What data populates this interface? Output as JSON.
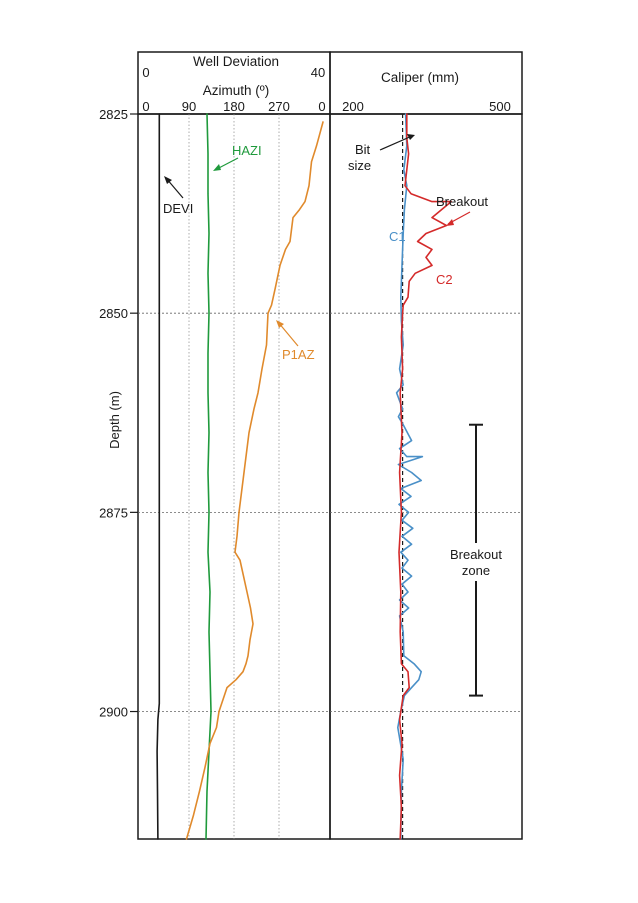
{
  "chart_data": [
    {
      "type": "line",
      "panel": "Well Deviation / Azimuth track",
      "header": {
        "deviation_title": "Well Deviation",
        "deviation_min": "0",
        "deviation_max": "40",
        "azimuth_title": "Azimuth (º)",
        "azimuth_ticks": [
          "0",
          "90",
          "180",
          "270",
          "0"
        ]
      },
      "y_axis": {
        "label": "Depth (m)",
        "ticks": [
          "2825",
          "2850",
          "2875",
          "2900"
        ],
        "ylim": [
          2825,
          2916
        ],
        "gridlines_at": [
          2850,
          2875,
          2900
        ],
        "inverted": true
      },
      "deviation_range": [
        0,
        40
      ],
      "azimuth_range": [
        0,
        360
      ],
      "azimuth_grid_at": [
        90,
        180,
        270
      ],
      "series": [
        {
          "name": "DEVI",
          "color": "#1a1a1a",
          "scale": "deviation",
          "points": [
            [
              3.4,
              2825
            ],
            [
              3.4,
              2850
            ],
            [
              3.4,
              2875
            ],
            [
              3.4,
              2899
            ],
            [
              3.1,
              2901
            ],
            [
              2.9,
              2905
            ],
            [
              3.0,
              2910
            ],
            [
              3.1,
              2916
            ]
          ]
        },
        {
          "name": "HAZI",
          "color": "#1f9a3c",
          "scale": "azimuth",
          "points": [
            [
              126,
              2825
            ],
            [
              128,
              2830
            ],
            [
              128,
              2835
            ],
            [
              130,
              2840
            ],
            [
              128,
              2845
            ],
            [
              130,
              2850
            ],
            [
              128,
              2855
            ],
            [
              128,
              2860
            ],
            [
              130,
              2865
            ],
            [
              128,
              2870
            ],
            [
              130,
              2875
            ],
            [
              128,
              2880
            ],
            [
              132,
              2885
            ],
            [
              130,
              2890
            ],
            [
              132,
              2895
            ],
            [
              134,
              2900
            ],
            [
              130,
              2905
            ],
            [
              126,
              2910
            ],
            [
              124,
              2916
            ]
          ]
        },
        {
          "name": "P1AZ",
          "color": "#e08a2c",
          "scale": "azimuth",
          "points": [
            [
              358,
              2826
            ],
            [
              345,
              2829
            ],
            [
              335,
              2831
            ],
            [
              330,
              2834
            ],
            [
              322,
              2836
            ],
            [
              311,
              2837
            ],
            [
              298,
              2838
            ],
            [
              292,
              2841
            ],
            [
              283,
              2842
            ],
            [
              272,
              2844
            ],
            [
              262,
              2847
            ],
            [
              255,
              2849
            ],
            [
              248,
              2850
            ],
            [
              245,
              2854
            ],
            [
              236,
              2857
            ],
            [
              228,
              2860
            ],
            [
              220,
              2862
            ],
            [
              210,
              2865
            ],
            [
              206,
              2867
            ],
            [
              202,
              2869
            ],
            [
              198,
              2871
            ],
            [
              194,
              2873
            ],
            [
              190,
              2875
            ],
            [
              186,
              2878
            ],
            [
              182,
              2880
            ],
            [
              192,
              2881
            ],
            [
              199,
              2883
            ],
            [
              206,
              2885
            ],
            [
              213,
              2887
            ],
            [
              218,
              2889
            ],
            [
              212,
              2891
            ],
            [
              208,
              2893
            ],
            [
              204,
              2894
            ],
            [
              198,
              2895
            ],
            [
              184,
              2896
            ],
            [
              166,
              2897
            ],
            [
              150,
              2900
            ],
            [
              145,
              2902
            ],
            [
              132,
              2904
            ],
            [
              122,
              2907
            ],
            [
              111,
              2910
            ],
            [
              99,
              2913
            ],
            [
              85,
              2916
            ]
          ]
        }
      ],
      "annotations": [
        "HAZI",
        "DEVI",
        "P1AZ"
      ]
    },
    {
      "type": "line",
      "panel": "Caliper track",
      "header": {
        "title": "Caliper (mm)",
        "x_min": "200",
        "x_max": "500"
      },
      "xlim": [
        200,
        500
      ],
      "y_axis": {
        "ylim": [
          2825,
          2916
        ],
        "inverted": true
      },
      "bit_size": 311,
      "series": [
        {
          "name": "C1",
          "color": "#4a90c8",
          "points": [
            [
              316,
              2825
            ],
            [
              318,
              2829
            ],
            [
              313,
              2832
            ],
            [
              318,
              2834
            ],
            [
              314,
              2837
            ],
            [
              312,
              2840
            ],
            [
              310,
              2844
            ],
            [
              308,
              2848
            ],
            [
              309,
              2851
            ],
            [
              312,
              2854
            ],
            [
              306,
              2857
            ],
            [
              312,
              2859
            ],
            [
              301,
              2860
            ],
            [
              311,
              2862
            ],
            [
              304,
              2863
            ],
            [
              312,
              2864
            ],
            [
              326,
              2866
            ],
            [
              306,
              2867
            ],
            [
              318,
              2868
            ],
            [
              344,
              2868
            ],
            [
              304,
              2869
            ],
            [
              326,
              2870
            ],
            [
              342,
              2871
            ],
            [
              308,
              2872
            ],
            [
              325,
              2873
            ],
            [
              305,
              2874
            ],
            [
              321,
              2875
            ],
            [
              310,
              2876
            ],
            [
              328,
              2877
            ],
            [
              310,
              2878
            ],
            [
              326,
              2879
            ],
            [
              308,
              2880
            ],
            [
              320,
              2881
            ],
            [
              310,
              2882
            ],
            [
              326,
              2883
            ],
            [
              310,
              2884
            ],
            [
              320,
              2885
            ],
            [
              306,
              2886
            ],
            [
              321,
              2887
            ],
            [
              306,
              2888
            ],
            [
              312,
              2890
            ],
            [
              313,
              2893
            ],
            [
              330,
              2894
            ],
            [
              342,
              2895
            ],
            [
              338,
              2896
            ],
            [
              326,
              2897
            ],
            [
              314,
              2898
            ],
            [
              308,
              2900
            ],
            [
              303,
              2902
            ],
            [
              312,
              2906
            ],
            [
              309,
              2910
            ],
            [
              308,
              2916
            ]
          ]
        },
        {
          "name": "C2",
          "color": "#d42a2a",
          "points": [
            [
              318,
              2825
            ],
            [
              318,
              2828
            ],
            [
              321,
              2830
            ],
            [
              318,
              2832
            ],
            [
              315,
              2834
            ],
            [
              325,
              2835
            ],
            [
              360,
              2836
            ],
            [
              392,
              2836
            ],
            [
              360,
              2838
            ],
            [
              384,
              2839
            ],
            [
              350,
              2840
            ],
            [
              336,
              2841
            ],
            [
              360,
              2842
            ],
            [
              350,
              2843
            ],
            [
              360,
              2844
            ],
            [
              332,
              2845
            ],
            [
              322,
              2846
            ],
            [
              320,
              2848
            ],
            [
              312,
              2849
            ],
            [
              311,
              2850
            ],
            [
              309,
              2853
            ],
            [
              311,
              2857
            ],
            [
              307,
              2860
            ],
            [
              310,
              2865
            ],
            [
              306,
              2870
            ],
            [
              309,
              2875
            ],
            [
              305,
              2880
            ],
            [
              308,
              2885
            ],
            [
              307,
              2890
            ],
            [
              309,
              2894
            ],
            [
              320,
              2895
            ],
            [
              322,
              2897
            ],
            [
              312,
              2898
            ],
            [
              306,
              2901
            ],
            [
              310,
              2904
            ],
            [
              306,
              2908
            ],
            [
              309,
              2912
            ],
            [
              307,
              2916
            ]
          ]
        }
      ],
      "annotations": [
        "Bit",
        "size",
        "Breakout",
        "C1",
        "C2"
      ],
      "breakout_zone": {
        "label_line1": "Breakout",
        "label_line2": "zone",
        "depth_top": 2864,
        "depth_bottom": 2898
      }
    }
  ],
  "colors": {
    "axis": "#1a1a1a",
    "grid": "#666666",
    "devi": "#1a1a1a",
    "hazi": "#1f9a3c",
    "p1az": "#e08a2c",
    "c1": "#4a90c8",
    "c2": "#d42a2a"
  }
}
